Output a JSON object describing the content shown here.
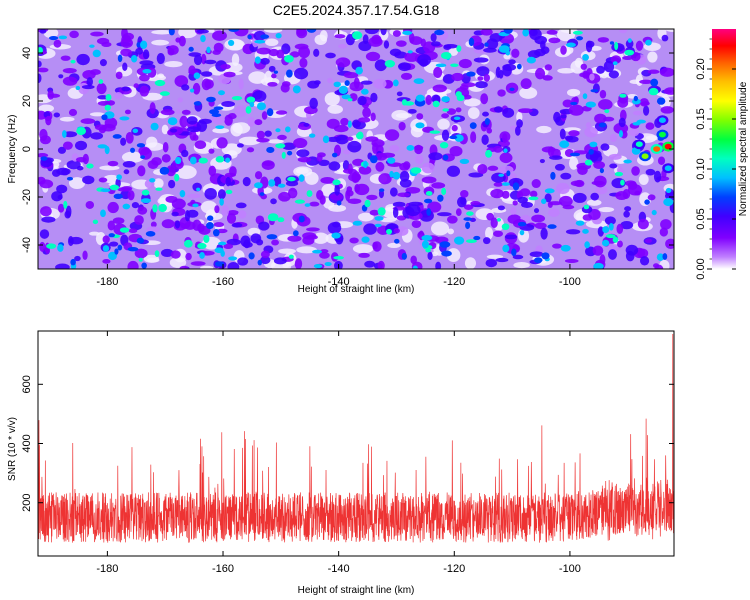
{
  "title": "C2E5.2024.357.17.54.G18",
  "chart_data": [
    {
      "type": "heatmap",
      "xlabel": "Height of straight line (km)",
      "ylabel": "Frequency (Hz)",
      "xlim": [
        -192,
        -82
      ],
      "ylim": [
        -50,
        50
      ],
      "xticks": [
        -180,
        -160,
        -140,
        -120,
        -100
      ],
      "yticks": [
        -40,
        -20,
        0,
        20,
        40
      ],
      "colorbar": {
        "label": "Normalized spectral amplitude",
        "range": [
          0,
          0.24
        ],
        "ticks": [
          0.0,
          0.05,
          0.1,
          0.15,
          0.2
        ],
        "tick_labels": [
          "0.00",
          "0.05",
          "0.10",
          "0.15",
          "0.20"
        ],
        "colormap": [
          "#ffffff",
          "#c080ff",
          "#8000ff",
          "#4000ff",
          "#0040ff",
          "#00c0ff",
          "#00ffc0",
          "#00ff40",
          "#80ff00",
          "#ffff00",
          "#ffc000",
          "#ff6000",
          "#ff0000",
          "#ff0080"
        ]
      },
      "description": "dense speckle of amplitude mostly 0.00-0.10; stronger 0.15-0.22 peaks near x=-85 km, y=0 Hz"
    },
    {
      "type": "line",
      "xlabel": "Height of straight line (km)",
      "ylabel": "SNR (10 * v/v)",
      "xlim": [
        -192,
        -82
      ],
      "ylim": [
        20,
        780
      ],
      "xticks": [
        -180,
        -160,
        -140,
        -120,
        -100
      ],
      "yticks": [
        200,
        400,
        600
      ],
      "series": [
        {
          "color": "#ee3333",
          "baseline": 150,
          "typical_range": [
            40,
            420
          ],
          "max": 770,
          "max_at_x": -83
        }
      ]
    }
  ],
  "colors": {
    "series_line": "#ee3333",
    "axis": "#000000"
  }
}
